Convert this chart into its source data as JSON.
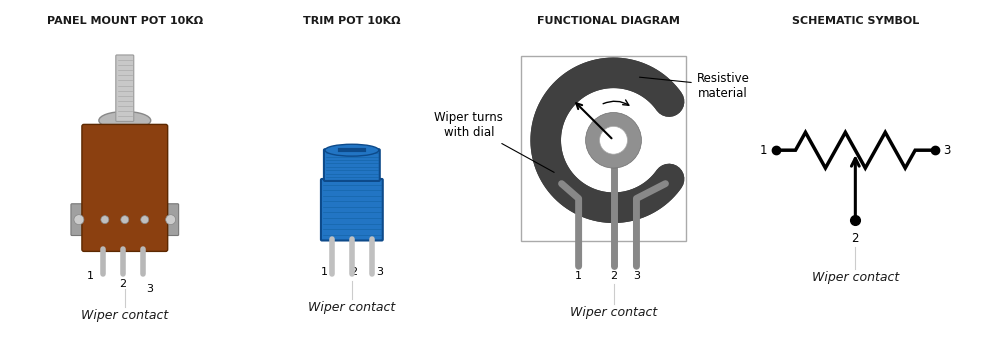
{
  "title1": "PANEL MOUNT POT 10KΩ",
  "title2": "TRIM POT 10KΩ",
  "title3": "FUNCTIONAL DIAGRAM",
  "title4": "SCHEMATIC SYMBOL",
  "wiper_contact": "Wiper contact",
  "resistive_material": "Resistive\nmaterial",
  "wiper_turns": "Wiper turns\nwith dial",
  "bg_color": "#ffffff",
  "title_fontsize": 8,
  "label_fontsize": 9,
  "annotation_fontsize": 8.5,
  "dark_gray": "#1a1a1a",
  "section_centers": [
    0.125,
    0.355,
    0.615,
    0.865
  ]
}
